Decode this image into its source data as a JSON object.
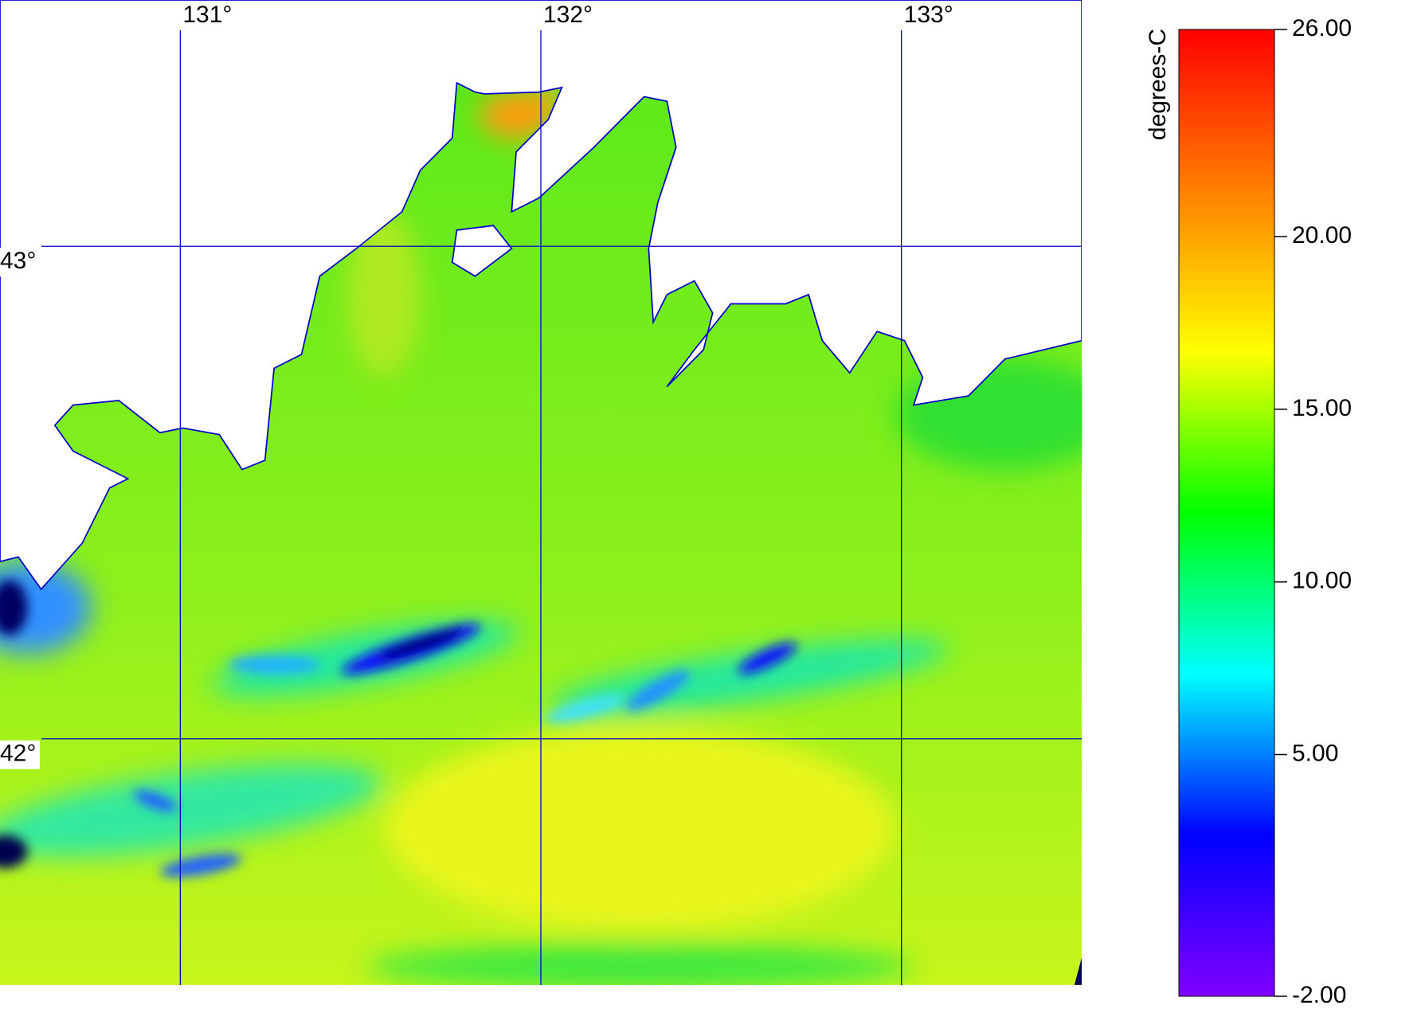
{
  "map": {
    "lon_range": [
      130.5,
      133.5
    ],
    "lat_range": [
      41.5,
      43.5
    ],
    "lon_ticks": [
      {
        "value": 131,
        "label": "131°"
      },
      {
        "value": 132,
        "label": "132°"
      },
      {
        "value": 133,
        "label": "133°"
      }
    ],
    "lat_ticks": [
      {
        "value": 43,
        "label": "43°"
      },
      {
        "value": 42,
        "label": "42°"
      }
    ],
    "colorbar": {
      "label": "degrees-C",
      "range": [
        -2,
        26
      ],
      "colors": [
        "#8000ff",
        "#0000ff",
        "#00ffff",
        "#00ff00",
        "#ffff00",
        "#ff8000",
        "#ff0000"
      ],
      "ticks": [
        {
          "value": 26,
          "label": "26.00"
        },
        {
          "value": 20,
          "label": "20.00"
        },
        {
          "value": 15,
          "label": "15.00"
        },
        {
          "value": 10,
          "label": "10.00"
        },
        {
          "value": 5,
          "label": "5.00"
        },
        {
          "value": -2,
          "label": "-2.00"
        }
      ]
    }
  }
}
